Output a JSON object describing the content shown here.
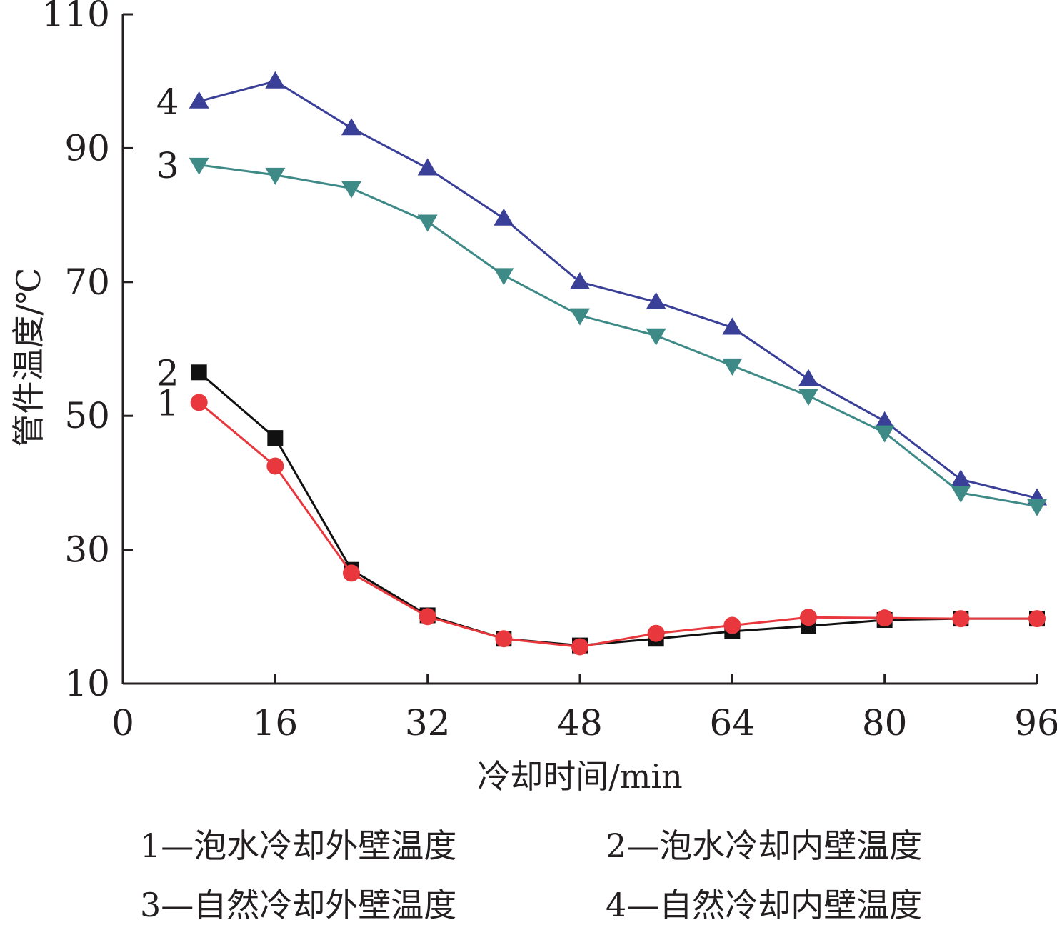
{
  "chart_data": {
    "type": "line",
    "xlabel": "冷却时间/min",
    "ylabel": "管件温度/℃",
    "xlim": [
      0,
      96
    ],
    "ylim": [
      10,
      110
    ],
    "x_ticks": [
      "0",
      "16",
      "32",
      "48",
      "64",
      "80",
      "96"
    ],
    "y_ticks": [
      "10",
      "30",
      "50",
      "70",
      "90",
      "110"
    ],
    "x_tick_values": [
      0,
      16,
      32,
      48,
      64,
      80,
      96
    ],
    "y_tick_values": [
      10,
      30,
      50,
      70,
      90,
      110
    ],
    "grid": false,
    "x": [
      8,
      16,
      24,
      32,
      40,
      48,
      56,
      64,
      72,
      80,
      88,
      96
    ],
    "series": [
      {
        "name": "1",
        "legend": "1—泡水冷却外壁温度",
        "marker": "circle",
        "color": "#e8383d",
        "values": [
          52,
          42.5,
          26.5,
          20,
          16.7,
          15.5,
          17.5,
          18.7,
          19.9,
          19.8,
          19.7,
          19.7
        ]
      },
      {
        "name": "2",
        "legend": "2—泡水冷却内壁温度",
        "marker": "square",
        "color": "#111111",
        "values": [
          56.5,
          46.7,
          27,
          20.2,
          16.7,
          15.7,
          16.7,
          17.8,
          18.6,
          19.5,
          19.7,
          19.7
        ]
      },
      {
        "name": "3",
        "legend": "3—自然冷却外壁温度",
        "marker": "triangle-down",
        "color": "#3e8a87",
        "values": [
          87.5,
          86,
          84,
          79,
          71,
          65,
          62,
          57.5,
          53,
          47.5,
          38.5,
          36.5
        ]
      },
      {
        "name": "4",
        "legend": "4—自然冷却内壁温度",
        "marker": "triangle-up",
        "color": "#3a3f97",
        "values": [
          97,
          100,
          93,
          87,
          79.5,
          70,
          67,
          63.2,
          55.5,
          49.2,
          40.5,
          37.7
        ]
      }
    ]
  }
}
